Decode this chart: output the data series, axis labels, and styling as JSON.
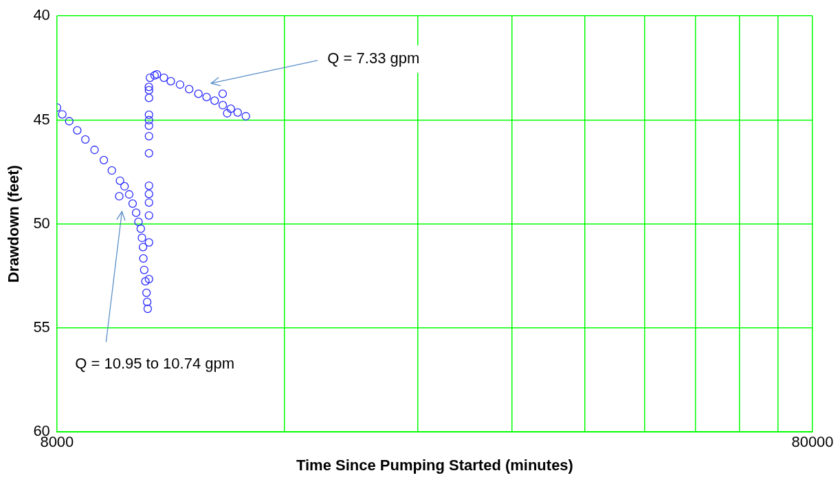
{
  "chart_data": {
    "type": "scatter",
    "xlabel": "Time Since Pumping Started (minutes)",
    "ylabel": "Drawdown (feet)",
    "log": "x",
    "xlim": [
      8000,
      80000
    ],
    "xticks": [
      8000,
      {
        "value": 16000,
        "label": null
      },
      {
        "value": 24000,
        "label": null
      },
      {
        "value": 32000,
        "label": null
      },
      {
        "value": 40000,
        "label": null
      },
      {
        "value": 48000,
        "label": null
      },
      {
        "value": 56000,
        "label": null
      },
      {
        "value": 64000,
        "label": null
      },
      {
        "value": 72000,
        "label": null
      },
      80000
    ],
    "ylim": [
      60,
      40
    ],
    "yticks": [
      40,
      45,
      50,
      55,
      60
    ],
    "grid": true,
    "legend": false,
    "marker": "circle",
    "series": [
      {
        "color": "#2b2bff",
        "x": [
          8000,
          8131,
          8305,
          8510,
          8723,
          8971,
          9229,
          9456,
          9672,
          9694,
          9830,
          9970,
          10075,
          10183,
          10256,
          10328,
          10365,
          10399,
          10410,
          10437,
          10474,
          10510,
          10532,
          10549,
          10590,
          10590,
          10590,
          10590,
          10590,
          10590,
          10590,
          10590,
          10590,
          10590,
          10590,
          10590,
          10590,
          10586,
          10622,
          10773,
          10848,
          11082,
          11317,
          11642,
          11970,
          12312,
          12621,
          12935,
          13257,
          13260,
          13440,
          13588,
          13877,
          14226
        ],
        "values": [
          44.4,
          44.73,
          45.06,
          45.5,
          45.94,
          46.44,
          46.93,
          47.43,
          48.67,
          47.92,
          48.19,
          48.58,
          49.02,
          49.46,
          49.9,
          50.23,
          50.67,
          51.11,
          51.66,
          52.21,
          52.76,
          53.31,
          53.75,
          54.08,
          52.65,
          50.89,
          49.59,
          48.97,
          48.56,
          48.16,
          46.6,
          45.78,
          45.28,
          45.01,
          44.75,
          43.94,
          43.57,
          43.41,
          42.97,
          42.86,
          42.81,
          42.97,
          43.14,
          43.3,
          43.52,
          43.74,
          43.9,
          44.07,
          43.74,
          44.29,
          44.68,
          44.46,
          44.64,
          44.82
        ]
      }
    ],
    "annotations": [
      "Q = 7.33 gpm",
      "Q = 10.95 to 10.74 gpm"
    ]
  }
}
